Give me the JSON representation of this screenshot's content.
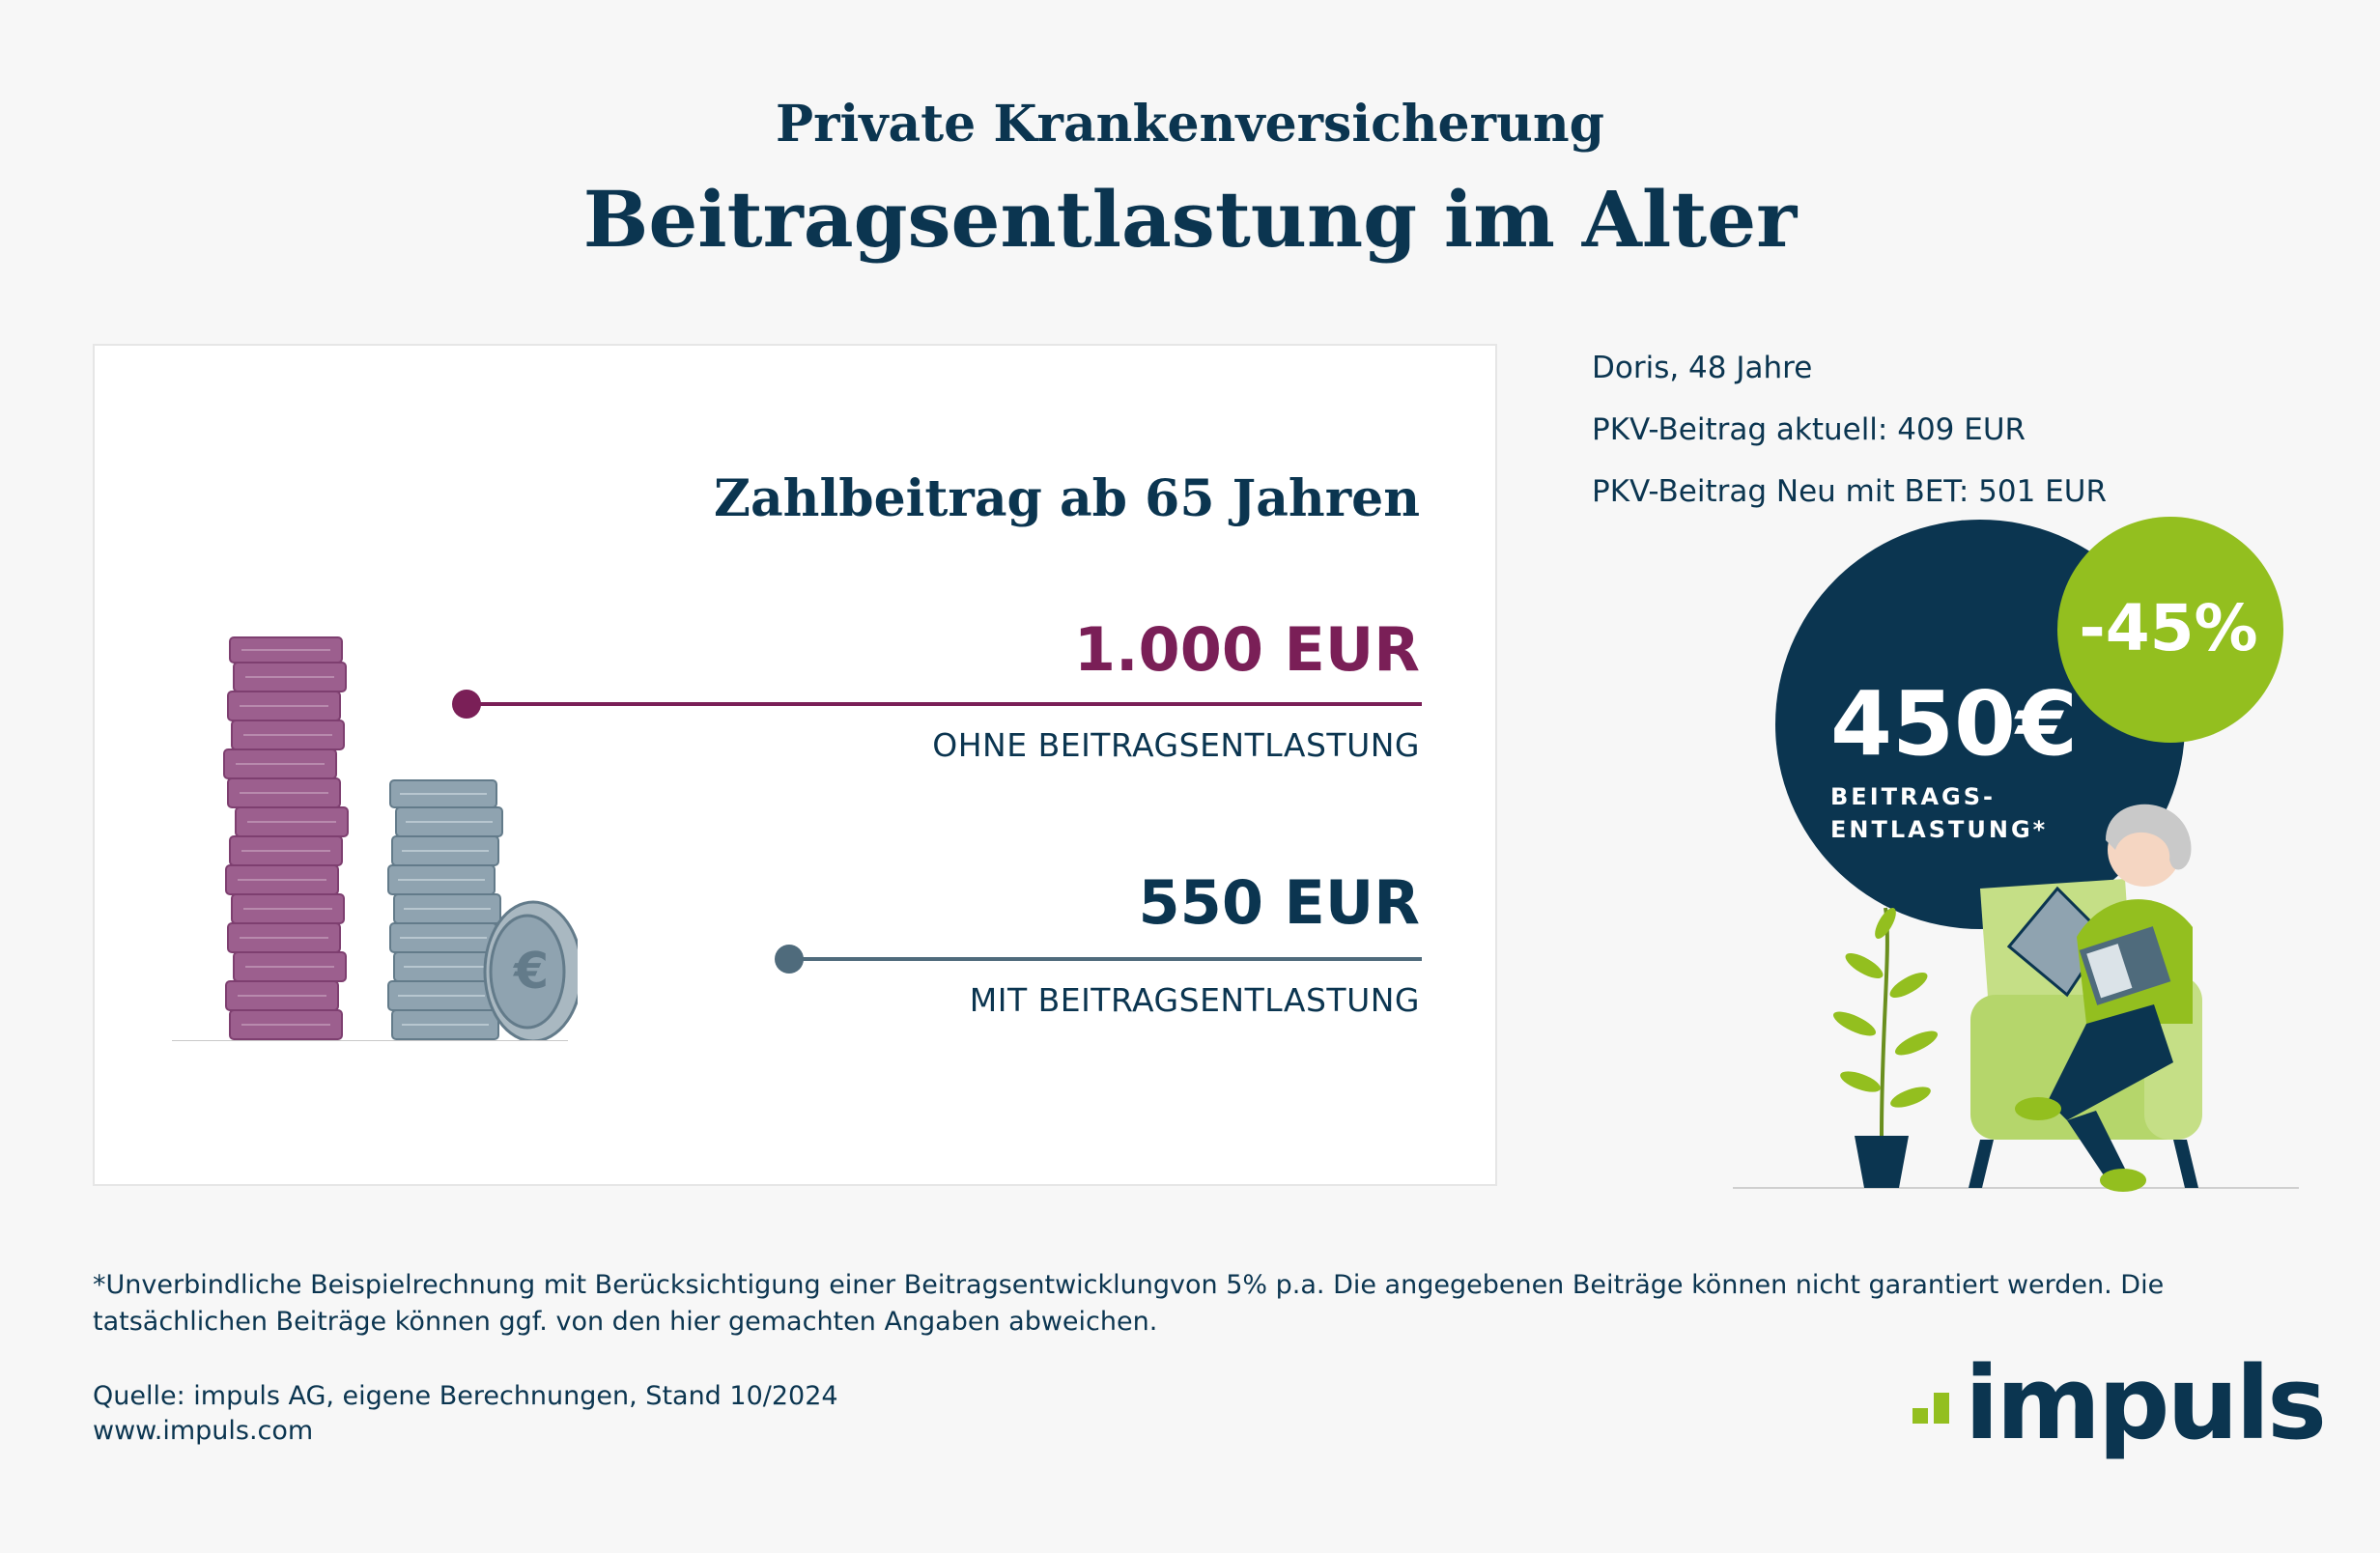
{
  "header": {
    "supertitle": "Private Krankenversicherung",
    "title": "Beitragsentlastung im Alter"
  },
  "card": {
    "heading": "Zahlbeitrag ab 65 Jahren",
    "rows": [
      {
        "value": "1.000 EUR",
        "caption": "OHNE BEITRAGSENTLASTUNG",
        "color": "#7a1f57"
      },
      {
        "value": "550 EUR",
        "caption": "MIT BEITRAGSENTLASTUNG",
        "color": "#4f6b7c"
      }
    ],
    "coin_symbol": "€"
  },
  "profile": {
    "lines": [
      "Doris, 48 Jahre",
      "PKV-Beitrag aktuell: 409 EUR",
      "PKV-Beitrag Neu mit BET: 501 EUR"
    ]
  },
  "highlight": {
    "amount": "450€",
    "label_line1": "BEITRAGS-",
    "label_line2": "ENTLASTUNG*",
    "percent": "-45%"
  },
  "footnote": "*Unverbindliche Beispielrechnung mit Berücksichtigung einer Beitragsentwicklungvon 5% p.a. Die angegebenen Beiträge können nicht garantiert werden. Die tatsächlichen Beiträge können ggf. von den hier gemachten Angaben abweichen.",
  "source": {
    "line1": "Quelle: impuls AG, eigene Berechnungen, Stand 10/2024",
    "line2": "www.impuls.com"
  },
  "logo": {
    "text": "impuls"
  },
  "colors": {
    "navy": "#0b3550",
    "purple": "#7a1f57",
    "green": "#93bf1f",
    "slate": "#4f6b7c",
    "background": "#f7f7f7"
  }
}
